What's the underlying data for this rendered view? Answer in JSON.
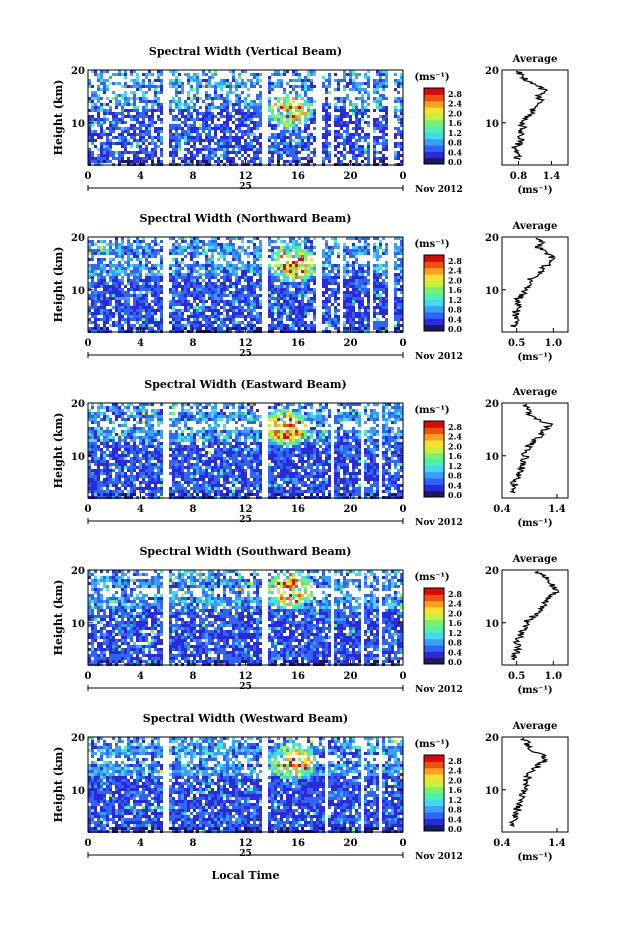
{
  "figure": {
    "date_label": "Nov 2012",
    "day_label": "25",
    "xlabel": "Local Time",
    "ylabel": "Height (km)",
    "unit_label": "(ms⁻¹)",
    "profile_title": "Average",
    "profile_xlabel": "(ms⁻¹)"
  },
  "colorbar": {
    "ticks": [
      "2.8",
      "2.4",
      "2.0",
      "1.6",
      "1.2",
      "0.8",
      "0.4",
      "0.0"
    ],
    "colors": [
      "#1a1a60",
      "#2a2ad8",
      "#2f64f5",
      "#3aa0f7",
      "#44d8f0",
      "#4ef0b0",
      "#78f070",
      "#c8f040",
      "#f8e030",
      "#f8a020",
      "#f05010",
      "#d80a0a"
    ]
  },
  "chart_data": [
    {
      "type": "heatmap",
      "title": "Spectral Width (Vertical Beam)",
      "x_ticks": [
        "0",
        "4",
        "8",
        "12",
        "16",
        "20",
        "0"
      ],
      "y_ticks": [
        "20",
        "10"
      ],
      "xlim": [
        0,
        24
      ],
      "ylim": [
        2,
        20
      ],
      "gaps_hours": [
        [
          5.7,
          6.0
        ],
        [
          13.1,
          13.5
        ],
        [
          17.3,
          17.6
        ],
        [
          18.4,
          18.7
        ],
        [
          21.4,
          21.7
        ],
        [
          22.8,
          23.1
        ]
      ],
      "hotspot": {
        "x": 15.3,
        "y": 12.5
      },
      "density": 0.72,
      "profile": {
        "title": "Average",
        "x_ticks": [
          "0.8",
          "1.4"
        ],
        "y_ticks": [
          "20",
          "10"
        ],
        "xlim": [
          0.5,
          1.7
        ],
        "ylim": [
          2,
          20
        ],
        "heights": [
          3,
          4,
          5,
          6,
          7,
          8,
          9,
          10,
          11,
          12,
          13,
          14,
          15,
          16,
          17,
          18,
          19,
          20
        ],
        "values": [
          0.75,
          0.8,
          0.72,
          0.8,
          0.85,
          0.82,
          0.9,
          0.85,
          0.95,
          1.05,
          1.1,
          1.2,
          1.15,
          1.35,
          1.1,
          0.95,
          0.85,
          0.8
        ]
      }
    },
    {
      "type": "heatmap",
      "title": "Spectral Width (Northward Beam)",
      "x_ticks": [
        "0",
        "4",
        "8",
        "12",
        "16",
        "20",
        "0"
      ],
      "y_ticks": [
        "20",
        "10"
      ],
      "xlim": [
        0,
        24
      ],
      "ylim": [
        2,
        20
      ],
      "gaps_hours": [
        [
          5.7,
          6.0
        ],
        [
          13.1,
          13.5
        ],
        [
          17.3,
          17.6
        ],
        [
          19.0,
          19.3
        ],
        [
          21.4,
          21.7
        ],
        [
          22.8,
          23.1
        ]
      ],
      "hotspot": {
        "x": 15.5,
        "y": 15.0
      },
      "density": 0.85,
      "profile": {
        "title": "Average",
        "x_ticks": [
          "0.5",
          "1.0"
        ],
        "y_ticks": [
          "20",
          "10"
        ],
        "xlim": [
          0.3,
          1.2
        ],
        "ylim": [
          2,
          20
        ],
        "heights": [
          3,
          4,
          5,
          6,
          7,
          8,
          9,
          10,
          11,
          12,
          13,
          14,
          15,
          16,
          17,
          18,
          19,
          20
        ],
        "values": [
          0.45,
          0.5,
          0.48,
          0.5,
          0.55,
          0.5,
          0.58,
          0.6,
          0.65,
          0.7,
          0.8,
          0.85,
          0.95,
          1.0,
          0.9,
          0.8,
          0.85,
          0.7
        ]
      }
    },
    {
      "type": "heatmap",
      "title": "Spectral Width (Eastward Beam)",
      "x_ticks": [
        "0",
        "4",
        "8",
        "12",
        "16",
        "20",
        "0"
      ],
      "y_ticks": [
        "20",
        "10"
      ],
      "xlim": [
        0,
        24
      ],
      "ylim": [
        2,
        20
      ],
      "gaps_hours": [
        [
          5.7,
          6.0
        ],
        [
          13.1,
          13.5
        ],
        [
          18.4,
          18.7
        ],
        [
          20.6,
          20.9
        ],
        [
          22.0,
          22.3
        ]
      ],
      "hotspot": {
        "x": 15.0,
        "y": 15.5
      },
      "density": 0.85,
      "profile": {
        "title": "Average",
        "x_ticks": [
          "0.4",
          "1.4"
        ],
        "y_ticks": [
          "20",
          "10"
        ],
        "xlim": [
          0.4,
          1.6
        ],
        "ylim": [
          2,
          20
        ],
        "heights": [
          3,
          4,
          5,
          6,
          7,
          8,
          9,
          10,
          11,
          12,
          13,
          14,
          15,
          16,
          17,
          18,
          19,
          20
        ],
        "values": [
          0.6,
          0.65,
          0.6,
          0.7,
          0.72,
          0.78,
          0.8,
          0.82,
          0.85,
          0.9,
          1.0,
          1.1,
          1.2,
          1.25,
          1.0,
          0.9,
          0.85,
          0.8
        ]
      }
    },
    {
      "type": "heatmap",
      "title": "Spectral Width (Southward Beam)",
      "x_ticks": [
        "0",
        "4",
        "8",
        "12",
        "16",
        "20",
        "0"
      ],
      "y_ticks": [
        "20",
        "10"
      ],
      "xlim": [
        0,
        24
      ],
      "ylim": [
        2,
        20
      ],
      "gaps_hours": [
        [
          5.7,
          6.0
        ],
        [
          13.1,
          13.5
        ],
        [
          18.4,
          18.7
        ],
        [
          20.6,
          20.9
        ],
        [
          22.0,
          22.3
        ]
      ],
      "hotspot": {
        "x": 15.3,
        "y": 16.5
      },
      "density": 0.85,
      "profile": {
        "title": "Average",
        "x_ticks": [
          "0.5",
          "1.0"
        ],
        "y_ticks": [
          "20",
          "10"
        ],
        "xlim": [
          0.3,
          1.2
        ],
        "ylim": [
          2,
          20
        ],
        "heights": [
          3,
          4,
          5,
          6,
          7,
          8,
          9,
          10,
          11,
          12,
          13,
          14,
          15,
          16,
          17,
          18,
          19,
          20
        ],
        "values": [
          0.45,
          0.48,
          0.5,
          0.5,
          0.52,
          0.55,
          0.6,
          0.62,
          0.7,
          0.8,
          0.85,
          0.9,
          0.95,
          1.05,
          1.0,
          0.95,
          0.85,
          0.75
        ]
      }
    },
    {
      "type": "heatmap",
      "title": "Spectral Width (Westward Beam)",
      "x_ticks": [
        "0",
        "4",
        "8",
        "12",
        "16",
        "20",
        "0"
      ],
      "y_ticks": [
        "20",
        "10"
      ],
      "xlim": [
        0,
        24
      ],
      "ylim": [
        2,
        20
      ],
      "gaps_hours": [
        [
          5.7,
          6.0
        ],
        [
          13.1,
          13.5
        ],
        [
          17.9,
          18.2
        ],
        [
          20.6,
          20.9
        ],
        [
          22.0,
          22.3
        ]
      ],
      "hotspot": {
        "x": 15.5,
        "y": 15.5
      },
      "density": 0.88,
      "profile": {
        "title": "Average",
        "x_ticks": [
          "0.4",
          "1.4"
        ],
        "y_ticks": [
          "20",
          "10"
        ],
        "xlim": [
          0.4,
          1.6
        ],
        "ylim": [
          2,
          20
        ],
        "heights": [
          3,
          4,
          5,
          6,
          7,
          8,
          9,
          10,
          11,
          12,
          13,
          14,
          15,
          16,
          17,
          18,
          19,
          20
        ],
        "values": [
          0.6,
          0.62,
          0.65,
          0.68,
          0.7,
          0.72,
          0.75,
          0.8,
          0.82,
          0.85,
          0.9,
          1.0,
          1.1,
          1.2,
          1.05,
          0.9,
          0.85,
          0.8
        ]
      }
    }
  ]
}
